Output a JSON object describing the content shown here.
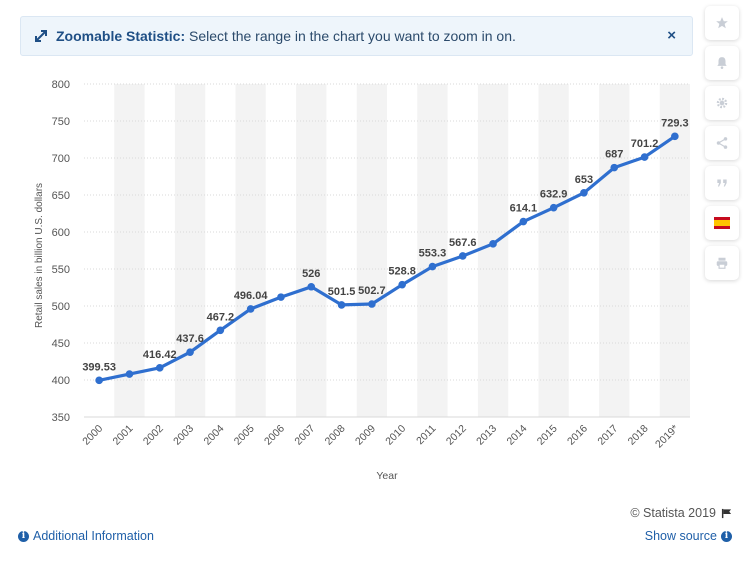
{
  "banner": {
    "title": "Zoomable Statistic:",
    "text": "Select the range in the chart you want to zoom in on.",
    "close_label": "×"
  },
  "sidebar": {
    "items": [
      {
        "name": "favorite-button",
        "icon": "star-icon"
      },
      {
        "name": "notification-button",
        "icon": "bell-icon"
      },
      {
        "name": "settings-button",
        "icon": "gear-icon"
      },
      {
        "name": "share-button",
        "icon": "share-icon"
      },
      {
        "name": "cite-button",
        "icon": "quote-icon"
      },
      {
        "name": "language-button",
        "icon": "spanish-flag-icon"
      },
      {
        "name": "print-button",
        "icon": "printer-icon"
      }
    ]
  },
  "footer": {
    "copyright": "© Statista 2019",
    "additional_info": "Additional Information",
    "show_source": "Show source"
  },
  "colors": {
    "line": "#2f6fcf",
    "band": "#f3f3f3",
    "grid": "#d9d9d9",
    "link": "#1f5fa8"
  },
  "chart_data": {
    "type": "line",
    "title": "",
    "xlabel": "Year",
    "ylabel": "Retail sales in billion U.S. dollars",
    "ylim": [
      350,
      800
    ],
    "yticks": [
      350,
      400,
      450,
      500,
      550,
      600,
      650,
      700,
      750,
      800
    ],
    "categories": [
      "2000",
      "2001",
      "2002",
      "2003",
      "2004",
      "2005",
      "2006",
      "2007",
      "2008",
      "2009",
      "2010",
      "2011",
      "2012",
      "2013",
      "2014",
      "2015",
      "2016",
      "2017",
      "2018",
      "2019*"
    ],
    "values": [
      399.53,
      408,
      416.42,
      437.6,
      467.2,
      496.04,
      512,
      526,
      501.5,
      502.7,
      528.8,
      553.3,
      567.6,
      584,
      614.1,
      632.9,
      653,
      687,
      701.2,
      729.3
    ],
    "labels": [
      "399.53",
      "",
      "416.42",
      "437.6",
      "467.2",
      "496.04",
      "",
      "526",
      "501.5",
      "502.7",
      "528.8",
      "553.3",
      "567.6",
      "",
      "614.1",
      "632.9",
      "653",
      "687",
      "701.2",
      "729.3"
    ]
  }
}
